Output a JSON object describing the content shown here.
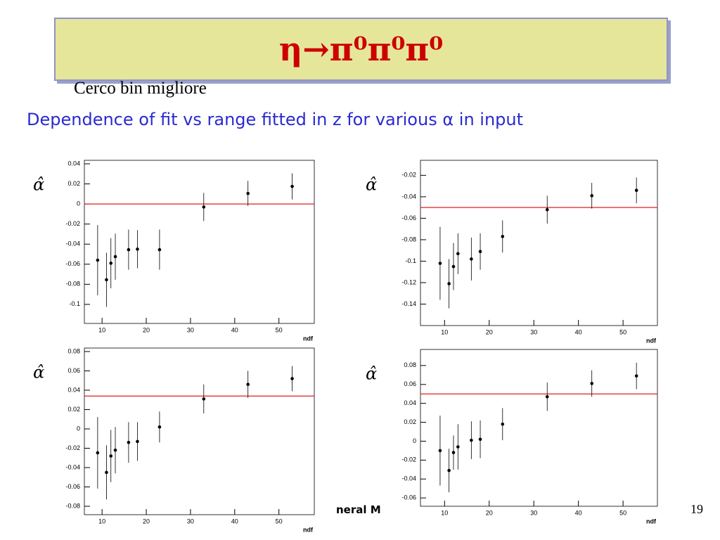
{
  "slide": {
    "title": "η→π⁰π⁰π⁰",
    "note": "Cerco bin migliore",
    "subtitle": "Dependence of fit vs range fitted in z for various α in input",
    "footer": "neral M",
    "page_number": "19"
  },
  "chart_data": [
    {
      "type": "scatter",
      "xlabel": "ndf",
      "ylabel": "α̂",
      "x": [
        9,
        11,
        12,
        13,
        16,
        18,
        23,
        33,
        43,
        53
      ],
      "y": [
        -0.056,
        -0.0755,
        -0.059,
        -0.0525,
        -0.0455,
        -0.045,
        -0.0455,
        -0.003,
        0.0105,
        0.0175
      ],
      "err": [
        0.035,
        0.027,
        0.025,
        0.023,
        0.02,
        0.019,
        0.02,
        0.014,
        0.0125,
        0.013
      ],
      "color": "#000000",
      "hline": 0,
      "hline_color": "#e02020",
      "xlim": [
        6,
        58
      ],
      "ylim": [
        -0.119,
        0.0435
      ],
      "xticks": [
        10,
        20,
        30,
        40,
        50
      ],
      "yticks": [
        0.04,
        0.02,
        0,
        -0.02,
        -0.04,
        -0.06,
        -0.08,
        -0.1
      ]
    },
    {
      "type": "scatter",
      "xlabel": "ndf",
      "ylabel": "α̂",
      "x": [
        9,
        11,
        12,
        13,
        16,
        18,
        23,
        33,
        43,
        53
      ],
      "y": [
        -0.102,
        -0.121,
        -0.105,
        -0.093,
        -0.098,
        -0.091,
        -0.077,
        -0.052,
        -0.039,
        -0.034
      ],
      "err": [
        0.034,
        0.023,
        0.022,
        0.019,
        0.02,
        0.017,
        0.015,
        0.013,
        0.012,
        0.012
      ],
      "color": "#000000",
      "hline": -0.05,
      "hline_color": "#e02020",
      "xlim": [
        4.6,
        57.7
      ],
      "ylim": [
        -0.16,
        -0.006
      ],
      "xticks": [
        10,
        20,
        30,
        40,
        50
      ],
      "yticks": [
        -0.02,
        -0.04,
        -0.06,
        -0.08,
        -0.1,
        -0.12,
        -0.14
      ]
    },
    {
      "type": "scatter",
      "xlabel": "ndf",
      "ylabel": "α̂",
      "x": [
        9,
        11,
        12,
        13,
        16,
        18,
        23,
        33,
        43,
        53
      ],
      "y": [
        -0.0247,
        -0.045,
        -0.028,
        -0.022,
        -0.014,
        -0.013,
        0.002,
        0.031,
        0.046,
        0.052
      ],
      "err": [
        0.037,
        0.028,
        0.027,
        0.024,
        0.021,
        0.02,
        0.016,
        0.015,
        0.014,
        0.013
      ],
      "color": "#000000",
      "hline": 0.034,
      "hline_color": "#e02020",
      "xlim": [
        6,
        58
      ],
      "ylim": [
        -0.0887,
        0.0836
      ],
      "xticks": [
        10,
        20,
        30,
        40,
        50
      ],
      "yticks": [
        0.08,
        0.06,
        0.04,
        0.02,
        0,
        -0.02,
        -0.04,
        -0.06,
        -0.08
      ]
    },
    {
      "type": "scatter",
      "xlabel": "ndf",
      "ylabel": "α̂",
      "x": [
        9,
        11,
        12,
        13,
        16,
        18,
        23,
        33,
        43,
        53
      ],
      "y": [
        -0.01,
        -0.031,
        -0.012,
        -0.006,
        0.001,
        0.002,
        0.018,
        0.047,
        0.061,
        0.069
      ],
      "err": [
        0.037,
        0.023,
        0.018,
        0.024,
        0.02,
        0.02,
        0.017,
        0.015,
        0.014,
        0.014
      ],
      "color": "#000000",
      "hline": 0.05,
      "hline_color": "#e02020",
      "xlim": [
        4.6,
        57.7
      ],
      "ylim": [
        -0.0688,
        0.097
      ],
      "xticks": [
        10,
        20,
        30,
        40,
        50
      ],
      "yticks": [
        0.08,
        0.06,
        0.04,
        0.02,
        0,
        -0.02,
        -0.04,
        -0.06
      ]
    }
  ]
}
